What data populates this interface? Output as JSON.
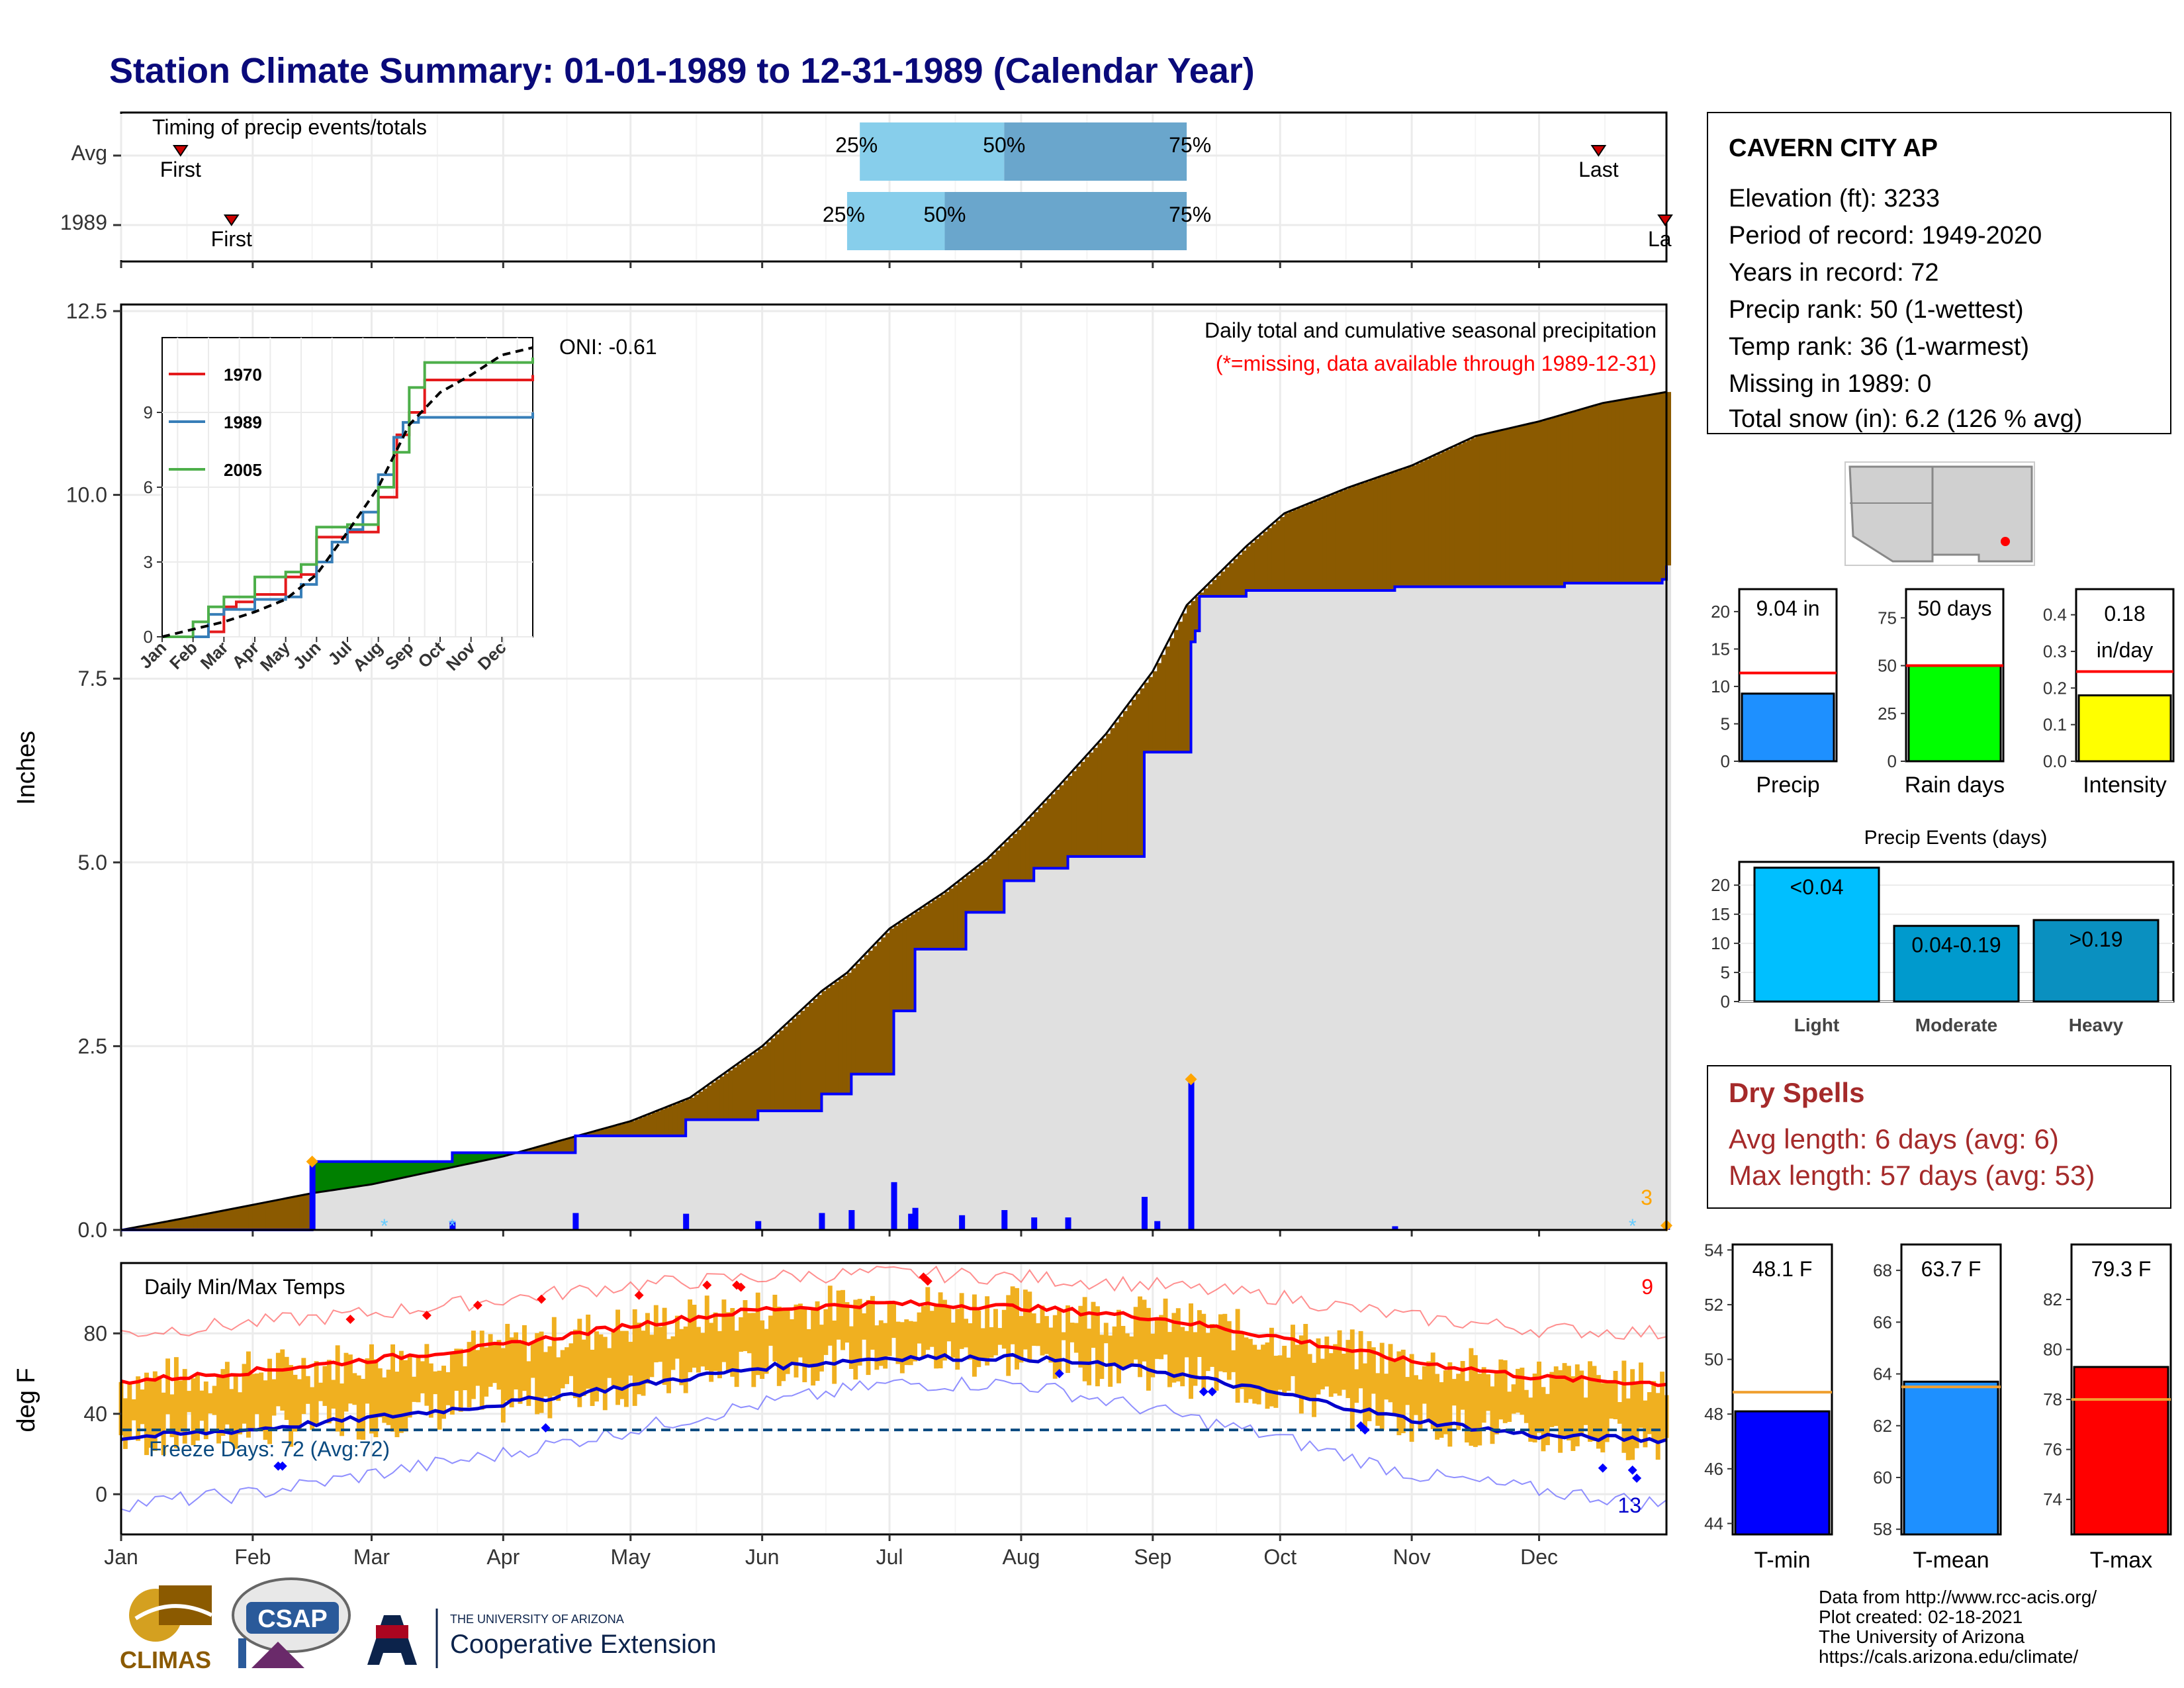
{
  "title": "Station Climate Summary: 01-01-1989 to 12-31-1989 (Calendar Year)",
  "colors": {
    "title": "#0a0a7a",
    "light_blue": "#87ceeb",
    "mid_blue": "#6aa6cc",
    "brown": "#8b5a00",
    "green": "#008000",
    "gray_fill": "#e0e0e0",
    "line_blue": "#0000ff",
    "orange": "#f0b020",
    "red": "#ff0000",
    "dry_spell_red": "#a52a2a"
  },
  "timing": {
    "title": "Timing of precip events/totals",
    "rows": [
      "Avg",
      "1989"
    ],
    "first_label": "First",
    "last_label": "Last",
    "last_label_truncated": "La",
    "avg": {
      "first_doy": 15,
      "p25_doy": 175,
      "p50_doy": 209,
      "p75_doy": 252,
      "last_doy": 349
    },
    "y1989": {
      "first_doy": 27,
      "p25_doy": 172,
      "p50_doy": 195,
      "p75_doy": 252,
      "last_doy": 365
    },
    "pct_labels": [
      "25%",
      "50%",
      "75%"
    ]
  },
  "station": {
    "name": "CAVERN CITY AP",
    "lines": [
      "Elevation (ft): 3233",
      "Period of record: 1949-2020",
      "Years in record: 72",
      "Precip rank: 50 (1-wettest)",
      "Temp rank: 36 (1-warmest)",
      "Missing in 1989: 0",
      "Total snow (in): 6.2 (126 % avg)"
    ]
  },
  "precip_panel": {
    "annotation": "Daily total and cumulative seasonal precipitation",
    "missing_note": "(*=missing, data available through 1989-12-31)",
    "oni": "ONI: -0.61",
    "count_label": "3",
    "ylabel": "Inches",
    "yticks": [
      "0.0",
      "2.5",
      "5.0",
      "7.5",
      "10.0",
      "12.5"
    ]
  },
  "inset": {
    "series_names": [
      "1970",
      "1989",
      "2005"
    ],
    "colors": [
      "#e41a1c",
      "#377eb8",
      "#4daf4a"
    ],
    "xticks": [
      "Jan",
      "Feb",
      "Mar",
      "Apr",
      "May",
      "Jun",
      "Jul",
      "Aug",
      "Sep",
      "Oct",
      "Nov",
      "Dec"
    ],
    "yticks": [
      "0",
      "3",
      "6",
      "9"
    ]
  },
  "temp_panel": {
    "title": "Daily Min/Max Temps",
    "freeze": "Freeze Days: 72 (Avg:72)",
    "hot_count": "9",
    "cold_count": "13",
    "ylabel": "deg F",
    "yticks": [
      "0",
      "40",
      "80"
    ]
  },
  "months": [
    "Jan",
    "Feb",
    "Mar",
    "Apr",
    "May",
    "Jun",
    "Jul",
    "Aug",
    "Sep",
    "Oct",
    "Nov",
    "Dec"
  ],
  "bars": {
    "precip": {
      "value_label": "9.04 in",
      "name": "Precip",
      "value": 9.04,
      "avg": 11.8,
      "ymax": 23,
      "ticks": [
        "0",
        "5",
        "10",
        "15",
        "20"
      ],
      "color": "#1e90ff"
    },
    "rain_days": {
      "value_label": "50 days",
      "name": "Rain days",
      "value": 50,
      "avg": 50,
      "ymax": 90,
      "ticks": [
        "0",
        "25",
        "50",
        "75"
      ],
      "color": "#00ff00"
    },
    "intensity": {
      "value_label_1": "0.18",
      "value_label_2": "in/day",
      "name": "Intensity",
      "value": 0.18,
      "avg": 0.245,
      "ymax": 0.47,
      "ticks": [
        "0.0",
        "0.1",
        "0.2",
        "0.3",
        "0.4"
      ],
      "color": "#ffff00"
    }
  },
  "events": {
    "title": "Precip Events (days)",
    "categories": [
      "Light",
      "Moderate",
      "Heavy"
    ],
    "labels": [
      "<0.04",
      "0.04-0.19",
      ">0.19"
    ],
    "values": [
      23,
      13,
      14
    ],
    "ticks": [
      "0",
      "5",
      "10",
      "15",
      "20"
    ],
    "colors": [
      "#00bfff",
      "#009acd",
      "#0a90c0"
    ]
  },
  "dry_spells": {
    "title": "Dry Spells",
    "avg": "Avg length: 6 days (avg: 6)",
    "max": "Max length: 57 days (avg: 53)"
  },
  "temps": {
    "tmin": {
      "value_label": "48.1 F",
      "name": "T-min",
      "value": 48.1,
      "avg": 48.8,
      "ylim": [
        43.6,
        54.2
      ],
      "ticks": [
        "44",
        "46",
        "48",
        "50",
        "52",
        "54"
      ],
      "color": "#0000ff"
    },
    "tmean": {
      "value_label": "63.7 F",
      "name": "T-mean",
      "value": 63.7,
      "avg": 63.5,
      "ylim": [
        57.8,
        69
      ],
      "ticks": [
        "58",
        "60",
        "62",
        "64",
        "66",
        "68"
      ],
      "color": "#1e90ff"
    },
    "tmax": {
      "value_label": "79.3 F",
      "name": "T-max",
      "value": 79.3,
      "avg": 78.0,
      "ylim": [
        72.6,
        84.2
      ],
      "ticks": [
        "74",
        "76",
        "78",
        "80",
        "82"
      ],
      "color": "#ff0000"
    }
  },
  "footer": {
    "lines": [
      "Data from http://www.rcc-acis.org/",
      "Plot created: 02-18-2021",
      "The University of Arizona",
      "https://cals.arizona.edu/climate/"
    ],
    "logo_climas": "CLIMAS",
    "logo_csap": "CSAP",
    "logo_ua_top": "THE UNIVERSITY OF ARIZONA",
    "logo_ua_bottom": "Cooperative Extension"
  },
  "chart_data": [
    {
      "type": "area",
      "title": "Daily total and cumulative seasonal precipitation",
      "ylabel": "Inches",
      "ylim": [
        0,
        12.5
      ],
      "xlim_doy": [
        1,
        365
      ],
      "series": [
        {
          "name": "avg_cumulative",
          "x": [
            1,
            15,
            31,
            46,
            60,
            91,
            121,
            135,
            152,
            166,
            172,
            182,
            195,
            205,
            213,
            222,
            233,
            244,
            252,
            266,
            275,
            290,
            305,
            320,
            335,
            350,
            365
          ],
          "values": [
            0.0,
            0.15,
            0.33,
            0.5,
            0.62,
            1.0,
            1.48,
            1.8,
            2.5,
            3.25,
            3.5,
            4.1,
            4.6,
            5.05,
            5.5,
            6.05,
            6.75,
            7.6,
            8.5,
            9.3,
            9.75,
            10.1,
            10.4,
            10.8,
            11.0,
            11.25,
            11.4
          ]
        },
        {
          "name": "1989_cumulative",
          "x": [
            1,
            45,
            46,
            78,
            79,
            107,
            108,
            133,
            134,
            150,
            151,
            165,
            166,
            172,
            173,
            182,
            183,
            187,
            188,
            199,
            200,
            208,
            209,
            215,
            216,
            223,
            224,
            241,
            242,
            252,
            253,
            254,
            255,
            265,
            266,
            300,
            301,
            340,
            341,
            364,
            365
          ],
          "values": [
            0.0,
            0.0,
            0.93,
            0.93,
            1.05,
            1.05,
            1.28,
            1.28,
            1.5,
            1.5,
            1.62,
            1.62,
            1.85,
            1.85,
            2.12,
            2.12,
            2.98,
            2.98,
            3.82,
            3.82,
            4.32,
            4.32,
            4.75,
            4.75,
            4.92,
            4.92,
            5.08,
            5.08,
            6.5,
            6.5,
            8.0,
            8.15,
            8.62,
            8.62,
            8.7,
            8.7,
            8.75,
            8.75,
            8.8,
            8.85,
            9.04
          ]
        },
        {
          "name": "daily_1989",
          "x": [
            46,
            79,
            108,
            134,
            151,
            166,
            173,
            183,
            187,
            188,
            199,
            209,
            216,
            224,
            242,
            245,
            253,
            301,
            365
          ],
          "values": [
            0.93,
            0.12,
            0.23,
            0.22,
            0.12,
            0.23,
            0.27,
            0.65,
            0.22,
            0.3,
            0.2,
            0.27,
            0.17,
            0.17,
            0.45,
            0.12,
            2.05,
            0.05,
            0.06
          ]
        }
      ]
    },
    {
      "type": "line",
      "title": "Daily Min/Max Temps",
      "ylabel": "deg F",
      "ylim": [
        -20,
        115
      ],
      "series": [
        {
          "name": "avg_tmax",
          "x": [
            1,
            31,
            60,
            91,
            121,
            152,
            182,
            213,
            244,
            274,
            305,
            335,
            365
          ],
          "values": [
            56,
            61,
            67,
            74,
            84,
            92,
            95,
            93,
            88,
            78,
            66,
            58,
            55
          ]
        },
        {
          "name": "avg_tmin",
          "x": [
            1,
            31,
            60,
            91,
            121,
            152,
            182,
            213,
            244,
            274,
            305,
            335,
            365
          ],
          "values": [
            28,
            32,
            38,
            45,
            54,
            63,
            68,
            68,
            62,
            50,
            37,
            29,
            27
          ]
        },
        {
          "name": "record_high",
          "x": [
            1,
            31,
            60,
            91,
            121,
            152,
            182,
            213,
            244,
            274,
            305,
            335,
            365
          ],
          "values": [
            80,
            85,
            90,
            97,
            104,
            108,
            110,
            108,
            104,
            98,
            88,
            82,
            80
          ]
        },
        {
          "name": "record_low",
          "x": [
            1,
            31,
            60,
            91,
            121,
            152,
            182,
            213,
            244,
            274,
            305,
            335,
            365
          ],
          "values": [
            -5,
            0,
            10,
            20,
            32,
            45,
            55,
            55,
            42,
            28,
            10,
            2,
            -5
          ]
        }
      ],
      "freeze_line": 32
    },
    {
      "type": "line",
      "title": "Inset cumulative precipitation",
      "ylim": [
        0,
        12
      ],
      "series": [
        {
          "name": "1970",
          "x": [
            0,
            1.5,
            2,
            2.4,
            3,
            4,
            4.5,
            5,
            6,
            7,
            7.6,
            8,
            8.5,
            12
          ],
          "values": [
            0,
            0.2,
            1.2,
            1.4,
            1.7,
            2.4,
            2.5,
            4.0,
            4.2,
            5.6,
            8.1,
            9.0,
            10.3,
            10.5
          ]
        },
        {
          "name": "1989",
          "x": [
            0,
            1.5,
            2,
            3,
            4,
            4.5,
            5,
            5.5,
            6,
            6.5,
            7,
            7.5,
            7.8,
            8.3,
            12
          ],
          "values": [
            0,
            0.9,
            1.1,
            1.5,
            1.6,
            2.1,
            3.0,
            3.8,
            4.3,
            5.0,
            6.5,
            8.0,
            8.6,
            8.8,
            9.0
          ]
        },
        {
          "name": "2005",
          "x": [
            0,
            1,
            1.5,
            2,
            3,
            4,
            4.5,
            5,
            6,
            7,
            7.5,
            8,
            8.5,
            12
          ],
          "values": [
            0,
            0.6,
            1.2,
            1.6,
            2.4,
            2.6,
            2.9,
            4.4,
            4.5,
            6.0,
            7.4,
            10.0,
            11.0,
            11.2
          ]
        },
        {
          "name": "average",
          "x": [
            0,
            1,
            2,
            3,
            4,
            5,
            6,
            7,
            8,
            9,
            10,
            11,
            12
          ],
          "values": [
            0,
            0.3,
            0.6,
            1.0,
            1.5,
            2.5,
            4.2,
            6.0,
            8.5,
            9.8,
            10.5,
            11.3,
            11.6
          ]
        }
      ]
    }
  ]
}
